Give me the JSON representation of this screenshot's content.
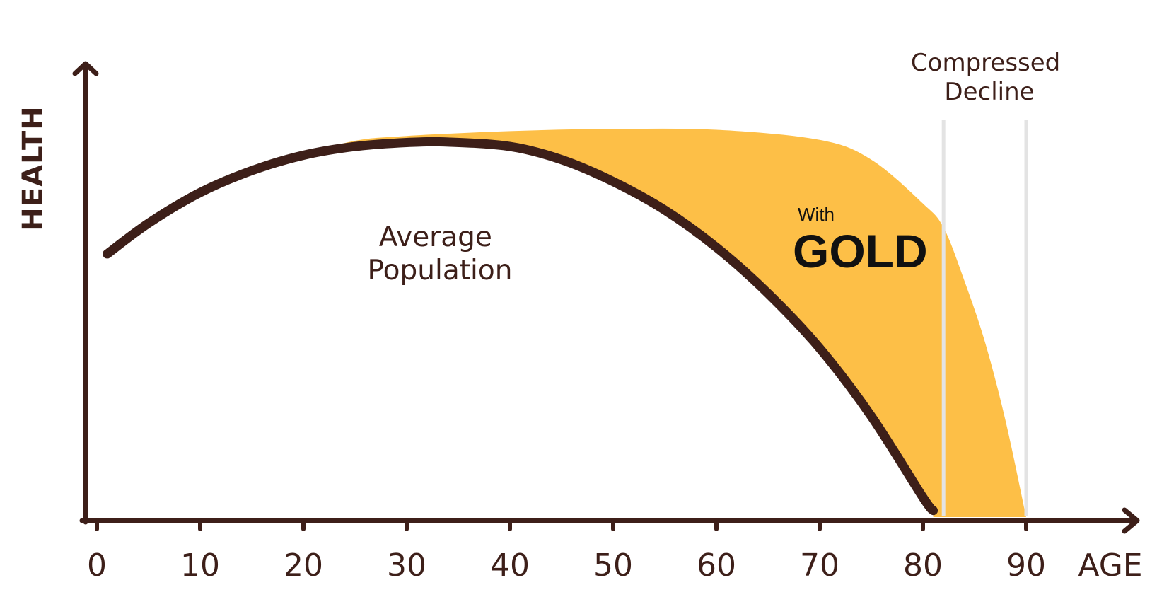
{
  "chart_data": {
    "type": "area",
    "xlabel": "AGE",
    "ylabel": "HEALTH",
    "xlim": [
      0,
      100
    ],
    "ylim": [
      0,
      100
    ],
    "x_ticks": [
      "0",
      "10",
      "20",
      "30",
      "40",
      "50",
      "60",
      "70",
      "80",
      "90"
    ],
    "series": [
      {
        "name": "Average Population",
        "style": "line",
        "x": [
          1,
          5,
          10,
          15,
          20,
          25,
          30,
          34,
          40,
          45,
          50,
          55,
          60,
          65,
          70,
          75,
          80,
          81
        ],
        "y": [
          60,
          67,
          74,
          79,
          82.5,
          84.5,
          85.4,
          85.5,
          84.5,
          81.5,
          76.5,
          70,
          61.5,
          51,
          38.5,
          23,
          4.5,
          1.5
        ]
      },
      {
        "name": "With GOLD",
        "style": "area",
        "x": [
          20,
          25,
          30,
          40,
          50,
          60,
          70,
          75,
          80,
          82,
          84,
          86,
          88,
          90
        ],
        "y": [
          82.5,
          85.8,
          86.9,
          88,
          88.5,
          88.3,
          86,
          81.5,
          71.5,
          66,
          54,
          40,
          22,
          0
        ]
      }
    ],
    "annotations": {
      "average_label_lines": [
        "Average",
        "Population"
      ],
      "gold_label_small": "With",
      "gold_label_big": "GOLD",
      "compressed_label_lines": [
        "Compressed",
        "Decline"
      ]
    },
    "reference_lines_x": [
      82,
      90
    ],
    "colors": {
      "axis": "#3d1f19",
      "average_line": "#3d1f19",
      "gold_fill": "#fdbf47",
      "reference_line": "#e3e3e3"
    }
  }
}
